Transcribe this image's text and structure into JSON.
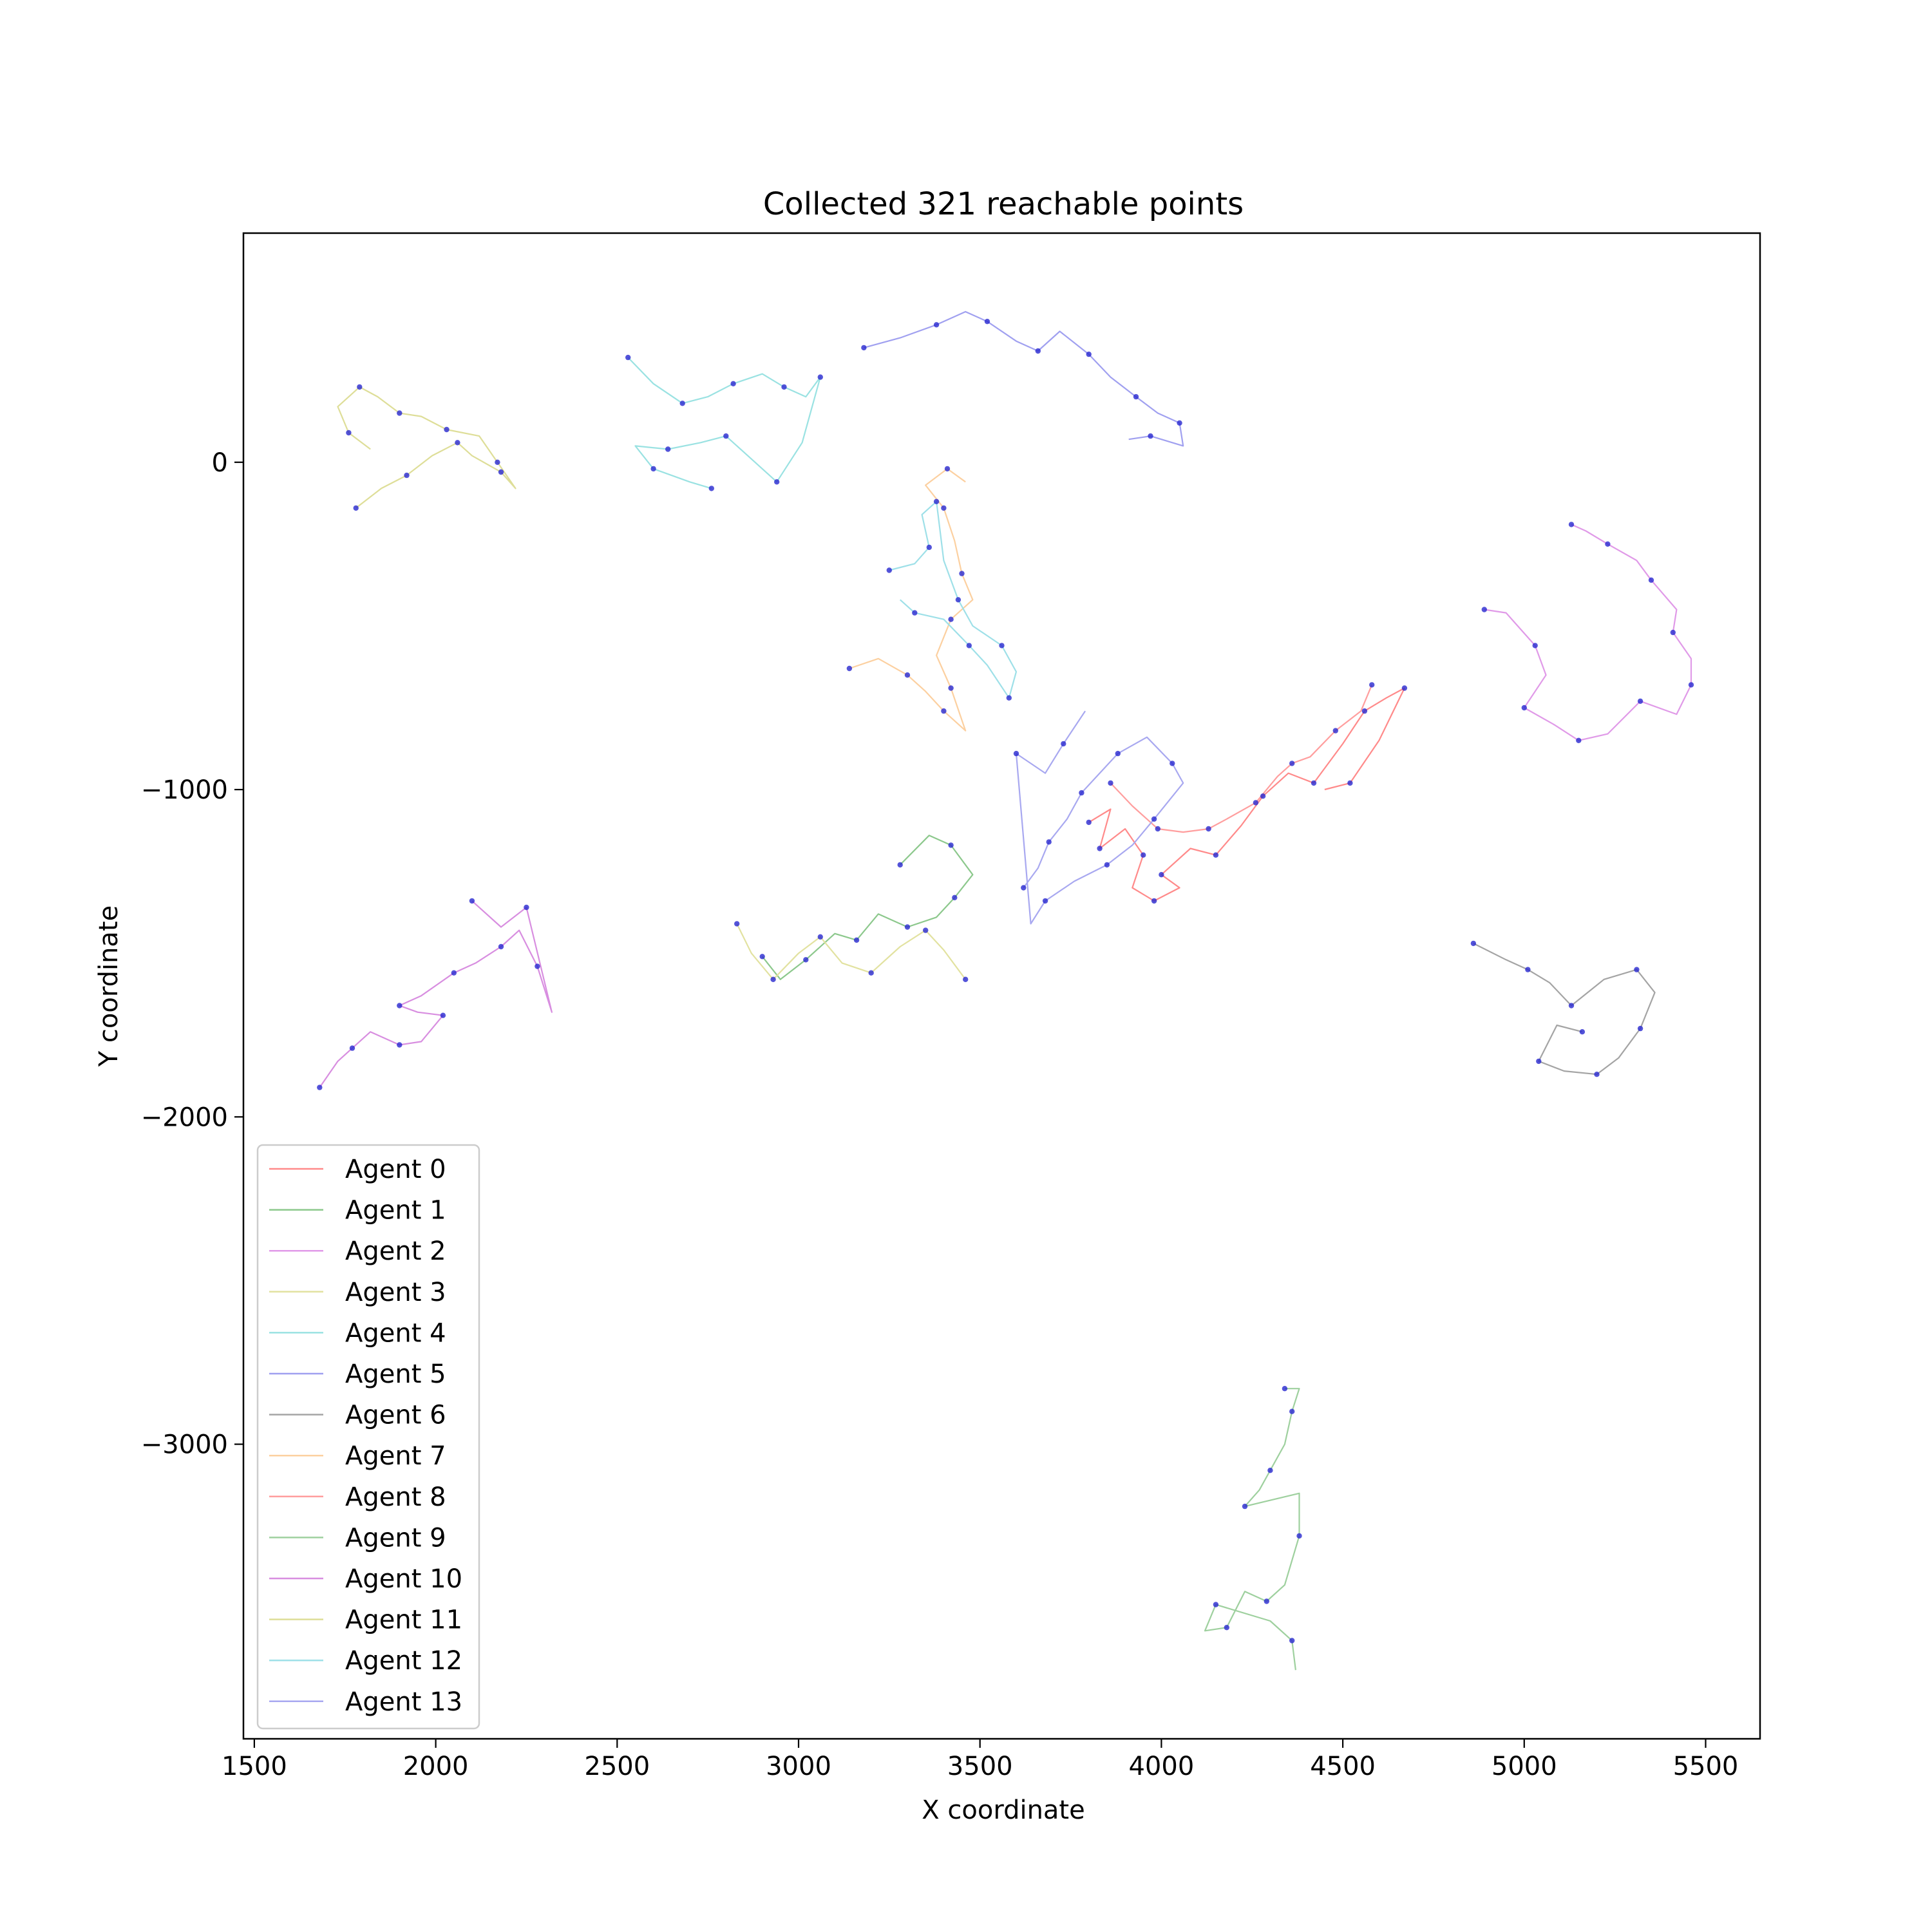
{
  "chart_data": {
    "type": "line",
    "title": "Collected 321 reachable points",
    "xlabel": "X coordinate",
    "ylabel": "Y coordinate",
    "xlim": [
      1470,
      5650
    ],
    "ylim": [
      -3900,
      700
    ],
    "xticks": [
      1500,
      2000,
      2500,
      3000,
      3500,
      4000,
      4500,
      5000,
      5500
    ],
    "xtick_labels": [
      "1500",
      "2000",
      "2500",
      "3000",
      "3500",
      "4000",
      "4500",
      "5000",
      "5500"
    ],
    "yticks": [
      0,
      -1000,
      -2000,
      -3000
    ],
    "ytick_labels": [
      "0",
      "−1000",
      "−2000",
      "−3000"
    ],
    "grid": false,
    "legend_position": "lower-left",
    "point_color": "#2828d0",
    "series": [
      {
        "name": "Agent 0",
        "color": "#ff8a8a",
        "points": [
          [
            3800,
            -1100
          ],
          [
            3860,
            -1060
          ],
          [
            3830,
            -1180
          ],
          [
            3900,
            -1120
          ],
          [
            3950,
            -1200
          ],
          [
            3920,
            -1300
          ],
          [
            3980,
            -1340
          ],
          [
            4050,
            -1300
          ],
          [
            4000,
            -1260
          ],
          [
            4080,
            -1180
          ],
          [
            4150,
            -1200
          ],
          [
            4220,
            -1110
          ],
          [
            4280,
            -1020
          ],
          [
            4350,
            -950
          ],
          [
            4420,
            -980
          ],
          [
            4500,
            -860
          ],
          [
            4560,
            -760
          ],
          [
            4620,
            -720
          ],
          [
            4670,
            -690
          ],
          [
            4600,
            -850
          ],
          [
            4520,
            -980
          ],
          [
            4450,
            -1000
          ]
        ]
      },
      {
        "name": "Agent 1",
        "color": "#8cc88c",
        "points": [
          [
            3280,
            -1230
          ],
          [
            3360,
            -1140
          ],
          [
            3420,
            -1170
          ],
          [
            3480,
            -1260
          ],
          [
            3430,
            -1330
          ],
          [
            3380,
            -1390
          ],
          [
            3300,
            -1420
          ],
          [
            3220,
            -1380
          ],
          [
            3160,
            -1460
          ],
          [
            3100,
            -1440
          ],
          [
            3020,
            -1520
          ],
          [
            2950,
            -1580
          ],
          [
            2900,
            -1510
          ]
        ]
      },
      {
        "name": "Agent 2",
        "color": "#e09ae8",
        "points": [
          [
            4890,
            -450
          ],
          [
            4950,
            -460
          ],
          [
            5030,
            -560
          ],
          [
            5060,
            -650
          ],
          [
            5000,
            -750
          ],
          [
            5080,
            -800
          ],
          [
            5150,
            -850
          ],
          [
            5230,
            -830
          ],
          [
            5320,
            -730
          ],
          [
            5420,
            -770
          ],
          [
            5460,
            -680
          ],
          [
            5460,
            -600
          ],
          [
            5410,
            -520
          ],
          [
            5420,
            -450
          ],
          [
            5350,
            -360
          ],
          [
            5310,
            -300
          ],
          [
            5230,
            -250
          ],
          [
            5170,
            -210
          ],
          [
            5130,
            -190
          ]
        ]
      },
      {
        "name": "Agent 3",
        "color": "#e2e2a0",
        "points": [
          [
            2830,
            -1410
          ],
          [
            2870,
            -1500
          ],
          [
            2930,
            -1580
          ],
          [
            3000,
            -1500
          ],
          [
            3060,
            -1450
          ],
          [
            3120,
            -1530
          ],
          [
            3200,
            -1560
          ],
          [
            3280,
            -1480
          ],
          [
            3350,
            -1430
          ],
          [
            3400,
            -1490
          ],
          [
            3460,
            -1580
          ]
        ]
      },
      {
        "name": "Agent 4",
        "color": "#9ae2e2",
        "points": [
          [
            2530,
            320
          ],
          [
            2600,
            240
          ],
          [
            2680,
            180
          ],
          [
            2750,
            200
          ],
          [
            2820,
            240
          ],
          [
            2900,
            270
          ],
          [
            2960,
            230
          ],
          [
            3020,
            200
          ],
          [
            3060,
            260
          ],
          [
            3010,
            60
          ],
          [
            2940,
            -60
          ],
          [
            2860,
            20
          ],
          [
            2800,
            80
          ],
          [
            2730,
            60
          ],
          [
            2640,
            40
          ],
          [
            2550,
            50
          ],
          [
            2600,
            -20
          ],
          [
            2700,
            -60
          ],
          [
            2760,
            -80
          ]
        ]
      },
      {
        "name": "Agent 5",
        "color": "#a0a0f0",
        "points": [
          [
            3180,
            350
          ],
          [
            3280,
            380
          ],
          [
            3380,
            420
          ],
          [
            3460,
            460
          ],
          [
            3520,
            430
          ],
          [
            3600,
            370
          ],
          [
            3660,
            340
          ],
          [
            3720,
            400
          ],
          [
            3800,
            330
          ],
          [
            3860,
            260
          ],
          [
            3930,
            200
          ],
          [
            3990,
            150
          ],
          [
            4050,
            120
          ],
          [
            4060,
            50
          ],
          [
            3970,
            80
          ],
          [
            3910,
            70
          ]
        ]
      },
      {
        "name": "Agent 6",
        "color": "#a4a4a4",
        "points": [
          [
            4860,
            -1470
          ],
          [
            4950,
            -1520
          ],
          [
            5010,
            -1550
          ],
          [
            5070,
            -1590
          ],
          [
            5130,
            -1660
          ],
          [
            5220,
            -1580
          ],
          [
            5310,
            -1550
          ],
          [
            5360,
            -1620
          ],
          [
            5320,
            -1730
          ],
          [
            5260,
            -1820
          ],
          [
            5200,
            -1870
          ],
          [
            5110,
            -1860
          ],
          [
            5040,
            -1830
          ],
          [
            5090,
            -1720
          ],
          [
            5160,
            -1740
          ]
        ]
      },
      {
        "name": "Agent 7",
        "color": "#fcd0a0",
        "points": [
          [
            3140,
            -630
          ],
          [
            3220,
            -600
          ],
          [
            3300,
            -650
          ],
          [
            3350,
            -700
          ],
          [
            3400,
            -760
          ],
          [
            3460,
            -820
          ],
          [
            3420,
            -690
          ],
          [
            3380,
            -590
          ],
          [
            3420,
            -480
          ],
          [
            3480,
            -420
          ],
          [
            3450,
            -340
          ],
          [
            3430,
            -240
          ],
          [
            3400,
            -140
          ],
          [
            3350,
            -70
          ],
          [
            3410,
            -20
          ],
          [
            3460,
            -60
          ]
        ]
      },
      {
        "name": "Agent 8",
        "color": "#ff9e9e",
        "points": [
          [
            3860,
            -980
          ],
          [
            3920,
            -1050
          ],
          [
            3990,
            -1120
          ],
          [
            4060,
            -1130
          ],
          [
            4130,
            -1120
          ],
          [
            4180,
            -1090
          ],
          [
            4260,
            -1040
          ],
          [
            4320,
            -960
          ],
          [
            4360,
            -920
          ],
          [
            4410,
            -900
          ],
          [
            4480,
            -820
          ],
          [
            4550,
            -760
          ],
          [
            4580,
            -680
          ]
        ]
      },
      {
        "name": "Agent 9",
        "color": "#9ed09e",
        "points": [
          [
            4340,
            -2830
          ],
          [
            4380,
            -2830
          ],
          [
            4360,
            -2900
          ],
          [
            4340,
            -3000
          ],
          [
            4300,
            -3080
          ],
          [
            4270,
            -3140
          ],
          [
            4230,
            -3190
          ],
          [
            4380,
            -3150
          ],
          [
            4380,
            -3280
          ],
          [
            4340,
            -3430
          ],
          [
            4290,
            -3480
          ],
          [
            4230,
            -3450
          ],
          [
            4180,
            -3560
          ],
          [
            4120,
            -3570
          ],
          [
            4150,
            -3490
          ],
          [
            4300,
            -3540
          ],
          [
            4360,
            -3600
          ],
          [
            4370,
            -3690
          ]
        ]
      },
      {
        "name": "Agent 10",
        "color": "#d88ee0",
        "points": [
          [
            1680,
            -1910
          ],
          [
            1730,
            -1830
          ],
          [
            1770,
            -1790
          ],
          [
            1820,
            -1740
          ],
          [
            1900,
            -1780
          ],
          [
            1960,
            -1770
          ],
          [
            2020,
            -1690
          ],
          [
            1950,
            -1680
          ],
          [
            1900,
            -1660
          ],
          [
            1960,
            -1630
          ],
          [
            2050,
            -1560
          ],
          [
            2110,
            -1530
          ],
          [
            2180,
            -1480
          ],
          [
            2230,
            -1430
          ],
          [
            2280,
            -1540
          ],
          [
            2320,
            -1680
          ],
          [
            2250,
            -1360
          ],
          [
            2180,
            -1420
          ],
          [
            2100,
            -1340
          ]
        ]
      },
      {
        "name": "Agent 11",
        "color": "#dede98",
        "points": [
          [
            1780,
            -140
          ],
          [
            1850,
            -80
          ],
          [
            1920,
            -40
          ],
          [
            1990,
            20
          ],
          [
            2060,
            60
          ],
          [
            2100,
            20
          ],
          [
            2180,
            -30
          ],
          [
            2220,
            -80
          ],
          [
            2170,
            0
          ],
          [
            2120,
            80
          ],
          [
            2030,
            100
          ],
          [
            1960,
            140
          ],
          [
            1900,
            150
          ],
          [
            1840,
            200
          ],
          [
            1790,
            230
          ],
          [
            1730,
            170
          ],
          [
            1760,
            90
          ],
          [
            1820,
            40
          ]
        ]
      },
      {
        "name": "Agent 12",
        "color": "#9ee0e8",
        "points": [
          [
            3250,
            -330
          ],
          [
            3320,
            -310
          ],
          [
            3360,
            -260
          ],
          [
            3340,
            -160
          ],
          [
            3380,
            -120
          ],
          [
            3400,
            -300
          ],
          [
            3440,
            -420
          ],
          [
            3480,
            -500
          ],
          [
            3560,
            -560
          ],
          [
            3600,
            -640
          ],
          [
            3580,
            -720
          ],
          [
            3520,
            -620
          ],
          [
            3470,
            -560
          ],
          [
            3400,
            -480
          ],
          [
            3320,
            -460
          ],
          [
            3280,
            -420
          ]
        ]
      },
      {
        "name": "Agent 13",
        "color": "#a8a8f0",
        "points": [
          [
            3620,
            -1300
          ],
          [
            3660,
            -1240
          ],
          [
            3690,
            -1160
          ],
          [
            3740,
            -1090
          ],
          [
            3780,
            -1010
          ],
          [
            3830,
            -950
          ],
          [
            3880,
            -890
          ],
          [
            3960,
            -840
          ],
          [
            4030,
            -920
          ],
          [
            4060,
            -980
          ],
          [
            3980,
            -1090
          ],
          [
            3920,
            -1170
          ],
          [
            3850,
            -1230
          ],
          [
            3760,
            -1280
          ],
          [
            3680,
            -1340
          ],
          [
            3640,
            -1410
          ],
          [
            3600,
            -890
          ],
          [
            3680,
            -950
          ],
          [
            3730,
            -860
          ],
          [
            3790,
            -760
          ]
        ]
      }
    ],
    "legend_entries": [
      "Agent 0",
      "Agent 1",
      "Agent 2",
      "Agent 3",
      "Agent 4",
      "Agent 5",
      "Agent 6",
      "Agent 7",
      "Agent 8",
      "Agent 9",
      "Agent 10",
      "Agent 11",
      "Agent 12",
      "Agent 13"
    ]
  }
}
